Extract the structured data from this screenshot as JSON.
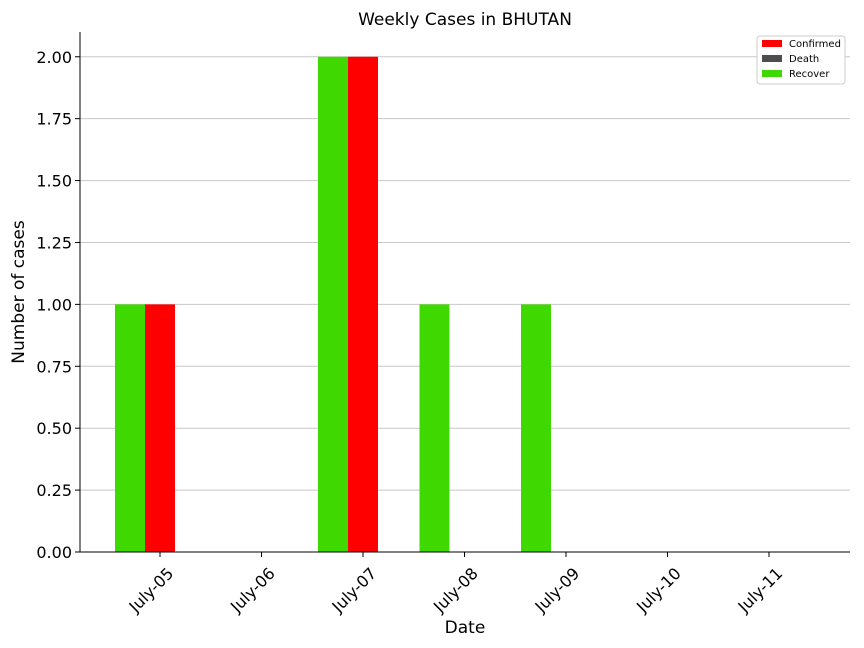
{
  "chart_data": {
    "type": "bar",
    "title": "Weekly Cases in BHUTAN",
    "xlabel": "Date",
    "ylabel": "Number of cases",
    "categories": [
      "July-05",
      "July-06",
      "July-07",
      "July-08",
      "July-09",
      "July-10",
      "July-11"
    ],
    "ylim": [
      0,
      2.1
    ],
    "yticks": [
      "0.00",
      "0.25",
      "0.50",
      "0.75",
      "1.00",
      "1.25",
      "1.50",
      "1.75",
      "2.00"
    ],
    "grid": "horizontal",
    "legend_position": "top-right",
    "series": [
      {
        "name": "Confirmed",
        "color": "#ff0000",
        "values": [
          1,
          0,
          2,
          0,
          0,
          0,
          0
        ]
      },
      {
        "name": "Death",
        "color": "#4d4d4d",
        "values": [
          0,
          0,
          0,
          0,
          0,
          0,
          0
        ]
      },
      {
        "name": "Recover",
        "color": "#3fd800",
        "values": [
          1,
          0,
          2,
          1,
          1,
          0,
          0
        ]
      }
    ]
  }
}
